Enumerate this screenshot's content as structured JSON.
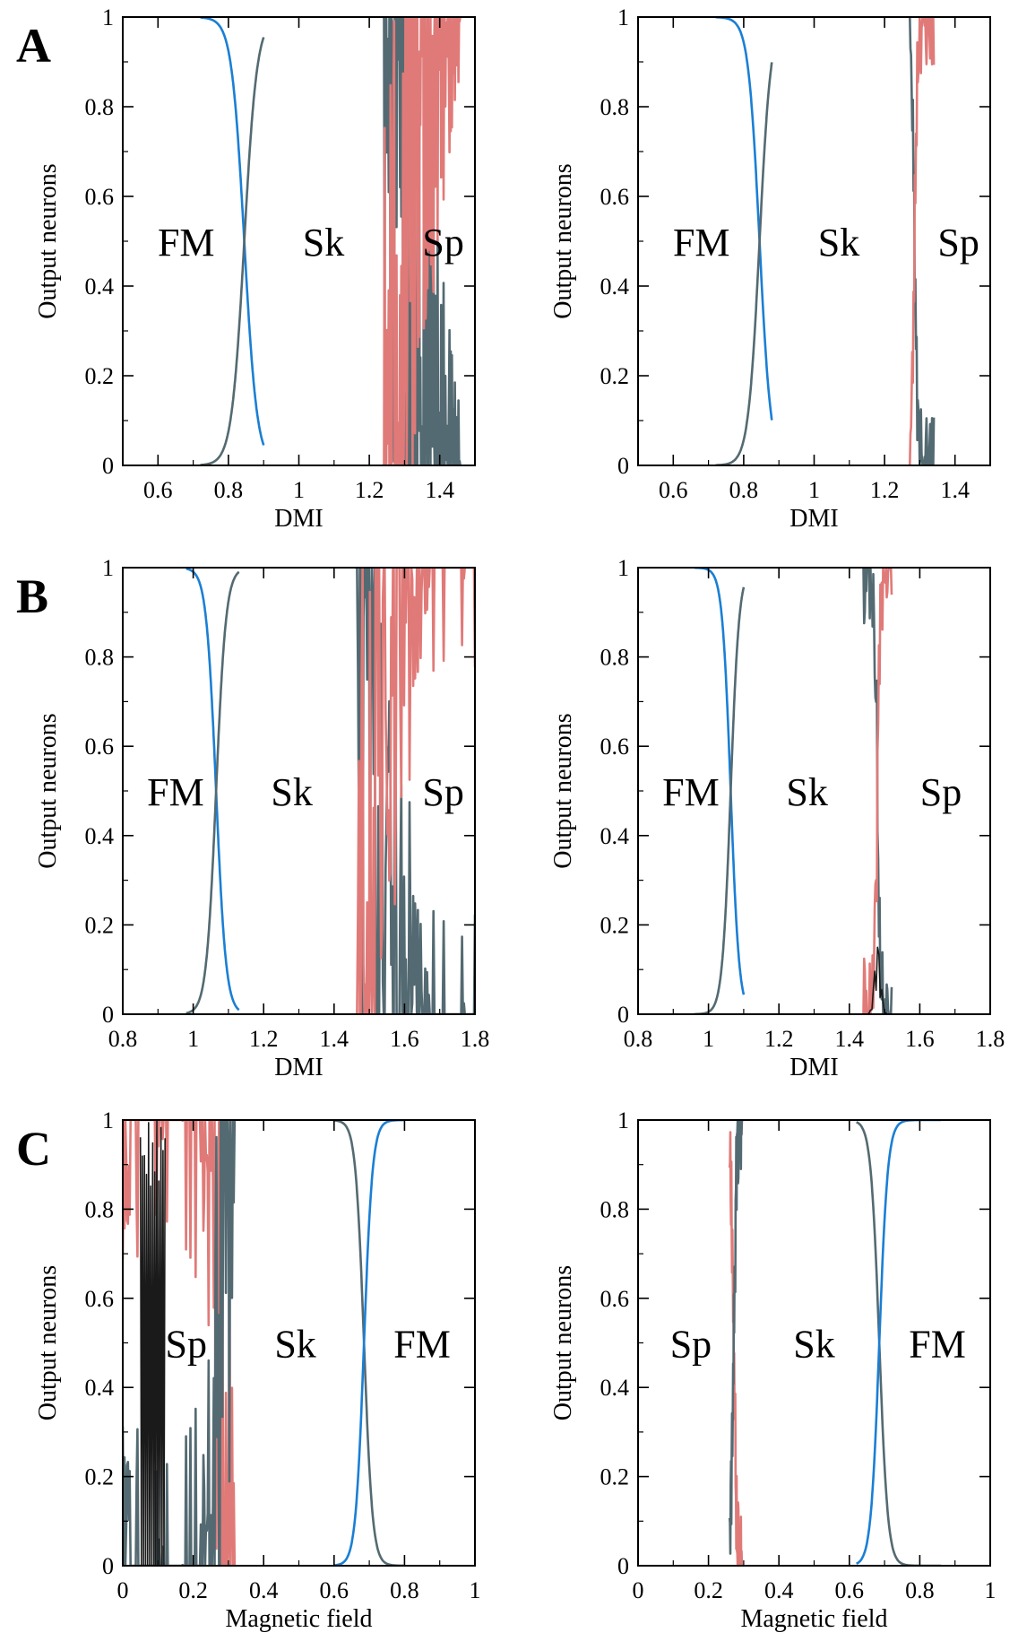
{
  "colors": {
    "fm": "#1a7fd4",
    "sk": "#546a72",
    "sp": "#e07a78",
    "extra": "#1a1a1a"
  },
  "chart_data": [
    {
      "type": "line",
      "letter": "A",
      "xlim": [
        0.5,
        1.5
      ],
      "ylim": [
        0,
        1
      ],
      "xticks": [
        "0.6",
        "0.8",
        "1",
        "1.2",
        "1.4"
      ],
      "xtick_values": [
        0.6,
        0.8,
        1.0,
        1.2,
        1.4
      ],
      "yticks": [
        "0",
        "0.2",
        "0.4",
        "0.6",
        "0.8",
        "1"
      ],
      "ytick_values": [
        0,
        0.2,
        0.4,
        0.6,
        0.8,
        1.0
      ],
      "xlabel": "DMI",
      "ylabel": "Output neurons",
      "regions": [
        {
          "text": "FM",
          "x": 0.68,
          "y": 0.5
        },
        {
          "text": "Sk",
          "x": 1.07,
          "y": 0.5
        },
        {
          "text": "Sp",
          "x": 1.41,
          "y": 0.5
        }
      ],
      "transition1": {
        "center": 0.845,
        "width": 0.018,
        "span": [
          0.72,
          0.9
        ],
        "first": "fm",
        "second": "sk"
      },
      "transition2": {
        "center": 1.3,
        "span": [
          1.24,
          1.46
        ],
        "noise": "strong",
        "seed": 11
      }
    },
    {
      "type": "line",
      "letter": "",
      "xlim": [
        0.5,
        1.5
      ],
      "ylim": [
        0,
        1
      ],
      "xticks": [
        "0.6",
        "0.8",
        "1",
        "1.2",
        "1.4"
      ],
      "xtick_values": [
        0.6,
        0.8,
        1.0,
        1.2,
        1.4
      ],
      "yticks": [
        "0",
        "0.2",
        "0.4",
        "0.6",
        "0.8",
        "1"
      ],
      "ytick_values": [
        0,
        0.2,
        0.4,
        0.6,
        0.8,
        1.0
      ],
      "xlabel": "DMI",
      "ylabel": "Output neurons",
      "regions": [
        {
          "text": "FM",
          "x": 0.68,
          "y": 0.5
        },
        {
          "text": "Sk",
          "x": 1.07,
          "y": 0.5
        },
        {
          "text": "Sp",
          "x": 1.41,
          "y": 0.5
        }
      ],
      "transition1": {
        "center": 0.845,
        "width": 0.016,
        "span": [
          0.72,
          0.88
        ],
        "first": "fm",
        "second": "sk"
      },
      "transition2": {
        "center": 1.285,
        "span": [
          1.27,
          1.34
        ],
        "noise": "weak",
        "seed": 23
      }
    },
    {
      "type": "line",
      "letter": "B",
      "xlim": [
        0.8,
        1.8
      ],
      "ylim": [
        0,
        1
      ],
      "xticks": [
        "0.8",
        "1",
        "1.2",
        "1.4",
        "1.6",
        "1.8"
      ],
      "xtick_values": [
        0.8,
        1.0,
        1.2,
        1.4,
        1.6,
        1.8
      ],
      "yticks": [
        "0",
        "0.2",
        "0.4",
        "0.6",
        "0.8",
        "1"
      ],
      "ytick_values": [
        0,
        0.2,
        0.4,
        0.6,
        0.8,
        1.0
      ],
      "xlabel": "DMI",
      "ylabel": "Output neurons",
      "regions": [
        {
          "text": "FM",
          "x": 0.95,
          "y": 0.5
        },
        {
          "text": "Sk",
          "x": 1.28,
          "y": 0.5
        },
        {
          "text": "Sp",
          "x": 1.71,
          "y": 0.5
        }
      ],
      "transition1": {
        "center": 1.065,
        "width": 0.014,
        "span": [
          0.98,
          1.13
        ],
        "first": "fm",
        "second": "sk"
      },
      "transition2": {
        "center": 1.5,
        "span": [
          1.46,
          1.8
        ],
        "noise": "strong",
        "seed": 37
      }
    },
    {
      "type": "line",
      "letter": "",
      "xlim": [
        0.8,
        1.8
      ],
      "ylim": [
        0,
        1
      ],
      "xticks": [
        "0.8",
        "1",
        "1.2",
        "1.4",
        "1.6",
        "1.8"
      ],
      "xtick_values": [
        0.8,
        1.0,
        1.2,
        1.4,
        1.6,
        1.8
      ],
      "yticks": [
        "0",
        "0.2",
        "0.4",
        "0.6",
        "0.8",
        "1"
      ],
      "ytick_values": [
        0,
        0.2,
        0.4,
        0.6,
        0.8,
        1.0
      ],
      "xlabel": "DMI",
      "ylabel": "Output neurons",
      "regions": [
        {
          "text": "FM",
          "x": 0.95,
          "y": 0.5
        },
        {
          "text": "Sk",
          "x": 1.28,
          "y": 0.5
        },
        {
          "text": "Sp",
          "x": 1.66,
          "y": 0.5
        }
      ],
      "transition1": {
        "center": 1.063,
        "width": 0.012,
        "span": [
          0.96,
          1.1
        ],
        "first": "fm",
        "second": "sk"
      },
      "transition2": {
        "center": 1.48,
        "span": [
          1.44,
          1.52
        ],
        "noise": "weak",
        "seed": 41,
        "extra_peak": 0.15
      }
    },
    {
      "type": "line",
      "letter": "C",
      "xlim": [
        0,
        1
      ],
      "ylim": [
        0,
        1
      ],
      "xticks": [
        "0",
        "0.2",
        "0.4",
        "0.6",
        "0.8",
        "1"
      ],
      "xtick_values": [
        0,
        0.2,
        0.4,
        0.6,
        0.8,
        1.0
      ],
      "yticks": [
        "0",
        "0.2",
        "0.4",
        "0.6",
        "0.8",
        "1"
      ],
      "ytick_values": [
        0,
        0.2,
        0.4,
        0.6,
        0.8,
        1.0
      ],
      "xlabel": "Magnetic field",
      "ylabel": "Output neurons",
      "regions": [
        {
          "text": "Sp",
          "x": 0.18,
          "y": 0.5
        },
        {
          "text": "Sk",
          "x": 0.49,
          "y": 0.5
        },
        {
          "text": "FM",
          "x": 0.85,
          "y": 0.5
        }
      ],
      "transition1": {
        "center": 0.685,
        "width": 0.012,
        "span": [
          0.6,
          0.8
        ],
        "first": "sk",
        "second": "fm"
      },
      "transition2": {
        "center": 0.275,
        "span": [
          0.0,
          0.32
        ],
        "noise": "strong",
        "reverse": true,
        "seed": 53,
        "extra_band": [
          0.05,
          0.12
        ]
      }
    },
    {
      "type": "line",
      "letter": "",
      "xlim": [
        0,
        1
      ],
      "ylim": [
        0,
        1
      ],
      "xticks": [
        "0",
        "0.2",
        "0.4",
        "0.6",
        "0.8",
        "1"
      ],
      "xtick_values": [
        0,
        0.2,
        0.4,
        0.6,
        0.8,
        1.0
      ],
      "yticks": [
        "0",
        "0.2",
        "0.4",
        "0.6",
        "0.8",
        "1"
      ],
      "ytick_values": [
        0,
        0.2,
        0.4,
        0.6,
        0.8,
        1.0
      ],
      "xlabel": "Magnetic field",
      "ylabel": "Output neurons",
      "regions": [
        {
          "text": "Sp",
          "x": 0.15,
          "y": 0.5
        },
        {
          "text": "Sk",
          "x": 0.5,
          "y": 0.5
        },
        {
          "text": "FM",
          "x": 0.85,
          "y": 0.5
        }
      ],
      "transition1": {
        "center": 0.685,
        "width": 0.012,
        "span": [
          0.62,
          0.86
        ],
        "first": "sk",
        "second": "fm"
      },
      "transition2": {
        "center": 0.272,
        "span": [
          0.26,
          0.3
        ],
        "noise": "weak",
        "reverse": true,
        "seed": 67
      }
    }
  ]
}
